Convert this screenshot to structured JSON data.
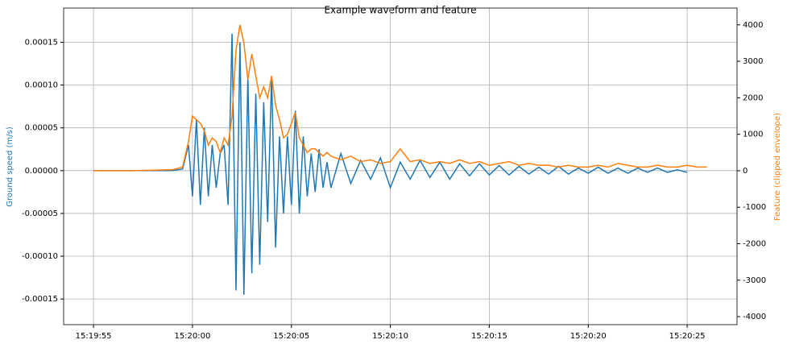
{
  "chart_data": {
    "type": "line",
    "title": "Example waveform and feature",
    "ylabel": "Ground speed (m/s)",
    "y2label": "Feature (clipped envelope)",
    "grid": true,
    "x": [
      55195,
      55197,
      55199,
      55199.5,
      55199.8,
      55200.0,
      55200.2,
      55200.4,
      55200.6,
      55200.8,
      55201.0,
      55201.2,
      55201.4,
      55201.6,
      55201.8,
      55202.0,
      55202.2,
      55202.4,
      55202.6,
      55202.8,
      55203.0,
      55203.2,
      55203.4,
      55203.6,
      55203.8,
      55204.0,
      55204.2,
      55204.4,
      55204.6,
      55204.8,
      55205.0,
      55205.2,
      55205.4,
      55205.6,
      55205.8,
      55206.0,
      55206.2,
      55206.4,
      55206.6,
      55206.8,
      55207.0,
      55207.5,
      55208,
      55208.5,
      55209,
      55209.5,
      55210,
      55210.5,
      55211,
      55211.5,
      55212,
      55212.5,
      55213,
      55213.5,
      55214,
      55214.5,
      55215,
      55215.5,
      55216,
      55216.5,
      55217,
      55217.5,
      55218,
      55218.5,
      55219,
      55219.5,
      55220,
      55220.5,
      55221,
      55221.5,
      55222,
      55222.5,
      55223,
      55223.5,
      55224,
      55224.5,
      55225,
      55225.5,
      55226
    ],
    "series": [
      {
        "name": "Ground speed (m/s)",
        "color": "#1f77b4",
        "axis": "y",
        "values": [
          0,
          0,
          0,
          2e-06,
          3e-05,
          -3e-05,
          6e-05,
          -4e-05,
          5e-05,
          -3e-05,
          3e-05,
          -2e-05,
          2e-05,
          3e-05,
          -4e-05,
          0.00016,
          -0.00014,
          0.00015,
          -0.000145,
          0.00011,
          -0.00012,
          9e-05,
          -0.00011,
          8e-05,
          -6e-05,
          0.00011,
          -9e-05,
          4e-05,
          -5e-05,
          4e-05,
          -4e-05,
          7e-05,
          -5e-05,
          4e-05,
          -3e-05,
          2e-05,
          -2.5e-05,
          2.5e-05,
          -2e-05,
          1e-05,
          -2e-05,
          2e-05,
          -1.5e-05,
          1.2e-05,
          -1e-05,
          1.5e-05,
          -2e-05,
          1e-05,
          -1e-05,
          1.2e-05,
          -8e-06,
          1e-05,
          -1e-05,
          8e-06,
          -6e-06,
          8e-06,
          -5e-06,
          6e-06,
          -5e-06,
          5e-06,
          -4e-06,
          4e-06,
          -4e-06,
          5e-06,
          -4e-06,
          3e-06,
          -3e-06,
          4e-06,
          -3e-06,
          3e-06,
          -3e-06,
          3e-06,
          -2e-06,
          3e-06,
          -2e-06,
          1e-06,
          -2e-06,
          null,
          null
        ]
      },
      {
        "name": "Feature (clipped envelope)",
        "color": "#ff7f0e",
        "axis": "y2",
        "values": [
          0,
          0,
          30,
          100,
          800,
          1500,
          1400,
          1300,
          1100,
          700,
          900,
          800,
          500,
          900,
          700,
          1500,
          3300,
          4000,
          3500,
          2500,
          3200,
          2600,
          2000,
          2300,
          2000,
          2600,
          1800,
          1400,
          900,
          1000,
          1300,
          1600,
          900,
          700,
          500,
          600,
          600,
          500,
          400,
          500,
          400,
          300,
          400,
          250,
          300,
          200,
          250,
          600,
          250,
          300,
          200,
          250,
          200,
          300,
          200,
          250,
          150,
          200,
          250,
          150,
          200,
          150,
          150,
          100,
          150,
          100,
          100,
          150,
          100,
          200,
          150,
          100,
          100,
          150,
          100,
          100,
          150,
          100,
          100
        ]
      }
    ],
    "xlim": [
      55193.49,
      55227.52
    ],
    "xticks": [
      {
        "value": 55195,
        "label": "15:19:55"
      },
      {
        "value": 55200,
        "label": "15:20:00"
      },
      {
        "value": 55205,
        "label": "15:20:05"
      },
      {
        "value": 55210,
        "label": "15:20:10"
      },
      {
        "value": 55215,
        "label": "15:20:15"
      },
      {
        "value": 55220,
        "label": "15:20:20"
      },
      {
        "value": 55225,
        "label": "15:20:25"
      }
    ],
    "ylim": [
      -0.00018,
      0.00019
    ],
    "yticks": [
      -0.00015,
      {
        "value": -0.0001,
        "label": "-0.00010"
      },
      -5e-05,
      {
        "value": 0,
        "label": "0.00000"
      },
      5e-05,
      {
        "value": 0.0001,
        "label": "0.00010"
      },
      0.00015
    ],
    "y2lim": [
      -4220,
      4460
    ],
    "y2ticks": [
      -4000,
      -3000,
      -2000,
      -1000,
      0,
      1000,
      2000,
      3000,
      4000
    ]
  }
}
